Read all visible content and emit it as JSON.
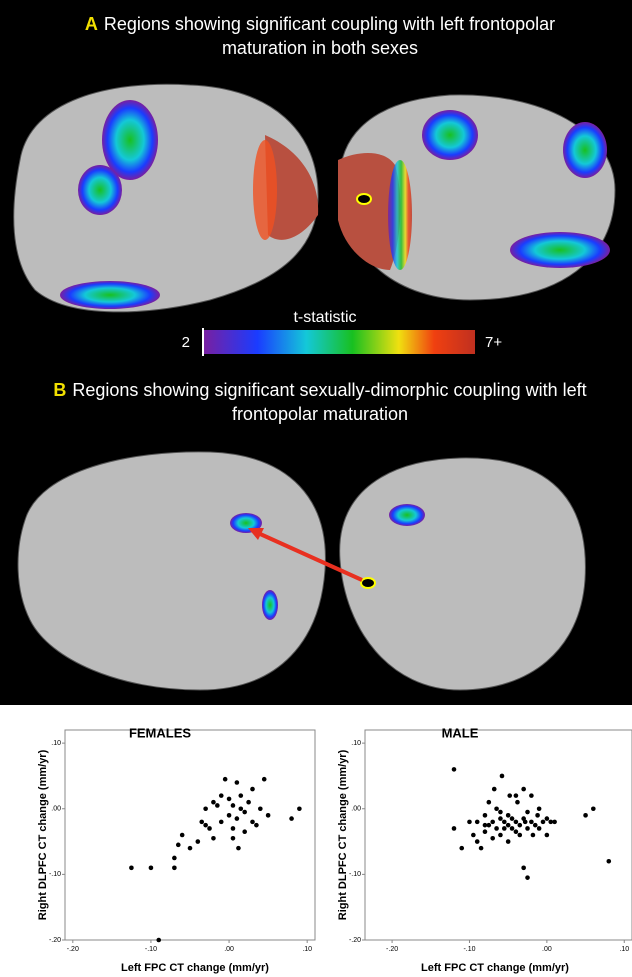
{
  "panel_a": {
    "letter": "A",
    "title": "Regions showing significant coupling with left frontopolar maturation in both sexes",
    "colorbar": {
      "label": "t-statistic",
      "min_label": "2",
      "max_label": "7+"
    }
  },
  "panel_b": {
    "letter": "B",
    "title": "Regions showing significant sexually-dimorphic coupling with left frontopolar maturation"
  },
  "chart_data": [
    {
      "type": "scatter",
      "title": "FEMALES",
      "x_label": "Left FPC CT change (mm/yr)",
      "y_label": "Right DLPFC CT change (mm/yr)",
      "xlim": [
        -0.21,
        0.11
      ],
      "ylim": [
        -0.2,
        0.12
      ],
      "xticks": [
        {
          "value": -0.2,
          "label": "-.20"
        },
        {
          "value": -0.1,
          "label": "-.10"
        },
        {
          "value": 0,
          "label": ".00"
        },
        {
          "value": 0.1,
          "label": ".10"
        }
      ],
      "yticks": [
        {
          "value": 0.1,
          "label": ".10"
        },
        {
          "value": 0,
          "label": ".00"
        },
        {
          "value": -0.1,
          "label": "-.10"
        },
        {
          "value": -0.2,
          "label": "-.20"
        }
      ],
      "color": "#000000",
      "x": [
        -0.125,
        -0.1,
        -0.09,
        -0.07,
        -0.065,
        -0.06,
        -0.07,
        -0.05,
        -0.04,
        -0.035,
        -0.03,
        -0.025,
        -0.02,
        -0.02,
        -0.015,
        -0.01,
        -0.01,
        -0.005,
        0.0,
        0.0,
        0.005,
        0.005,
        0.01,
        0.01,
        0.012,
        0.015,
        0.015,
        0.02,
        0.02,
        0.025,
        0.03,
        0.03,
        0.035,
        0.045,
        0.05,
        0.08,
        0.09,
        -0.03,
        0.005,
        0.04
      ],
      "values": [
        -0.09,
        -0.09,
        -0.2,
        -0.075,
        -0.055,
        -0.04,
        -0.09,
        -0.06,
        -0.05,
        -0.02,
        0.0,
        -0.03,
        0.01,
        -0.045,
        0.005,
        -0.02,
        0.02,
        0.045,
        -0.01,
        0.015,
        -0.03,
        0.005,
        0.04,
        -0.015,
        -0.06,
        0.0,
        0.02,
        -0.005,
        -0.035,
        0.01,
        -0.02,
        0.03,
        -0.025,
        0.045,
        -0.01,
        -0.015,
        0.0,
        -0.025,
        -0.045,
        0.0
      ]
    },
    {
      "type": "scatter",
      "title": "MALE",
      "x_label": "Left FPC CT change (mm/yr)",
      "y_label": "Right DLPFC CT change (mm/yr)",
      "xlim": [
        -0.235,
        0.11
      ],
      "ylim": [
        -0.2,
        0.12
      ],
      "xticks": [
        {
          "value": -0.2,
          "label": "-.20"
        },
        {
          "value": -0.1,
          "label": "-.10"
        },
        {
          "value": 0,
          "label": ".00"
        },
        {
          "value": 0.1,
          "label": ".10"
        }
      ],
      "yticks": [
        {
          "value": 0.1,
          "label": ".10"
        },
        {
          "value": 0,
          "label": ".00"
        },
        {
          "value": -0.1,
          "label": "-.10"
        },
        {
          "value": -0.2,
          "label": "-.20"
        }
      ],
      "color": "#000000",
      "x": [
        -0.12,
        -0.12,
        -0.11,
        -0.1,
        -0.095,
        -0.09,
        -0.09,
        -0.085,
        -0.08,
        -0.08,
        -0.075,
        -0.075,
        -0.07,
        -0.07,
        -0.068,
        -0.065,
        -0.065,
        -0.06,
        -0.06,
        -0.058,
        -0.055,
        -0.055,
        -0.05,
        -0.05,
        -0.048,
        -0.045,
        -0.045,
        -0.04,
        -0.04,
        -0.038,
        -0.035,
        -0.035,
        -0.03,
        -0.03,
        -0.028,
        -0.025,
        -0.025,
        -0.02,
        -0.02,
        -0.018,
        -0.015,
        -0.012,
        -0.01,
        -0.01,
        -0.005,
        0.0,
        0.0,
        0.005,
        0.01,
        -0.06,
        -0.04,
        -0.03,
        0.05,
        0.06,
        0.08,
        -0.05,
        -0.08,
        -0.025
      ],
      "values": [
        0.06,
        -0.03,
        -0.06,
        -0.02,
        -0.04,
        -0.02,
        -0.05,
        -0.06,
        -0.01,
        -0.035,
        0.01,
        -0.025,
        -0.02,
        -0.045,
        0.03,
        -0.03,
        0.0,
        -0.015,
        -0.04,
        0.05,
        -0.02,
        -0.03,
        -0.01,
        -0.025,
        0.02,
        -0.03,
        -0.015,
        -0.02,
        -0.035,
        0.01,
        -0.025,
        -0.04,
        -0.015,
        0.03,
        -0.02,
        -0.005,
        -0.03,
        -0.02,
        0.02,
        -0.04,
        -0.025,
        -0.01,
        -0.03,
        0.0,
        -0.02,
        -0.015,
        -0.04,
        -0.02,
        -0.02,
        -0.005,
        0.02,
        -0.09,
        -0.01,
        0.0,
        -0.08,
        -0.05,
        -0.025,
        -0.105
      ]
    }
  ]
}
